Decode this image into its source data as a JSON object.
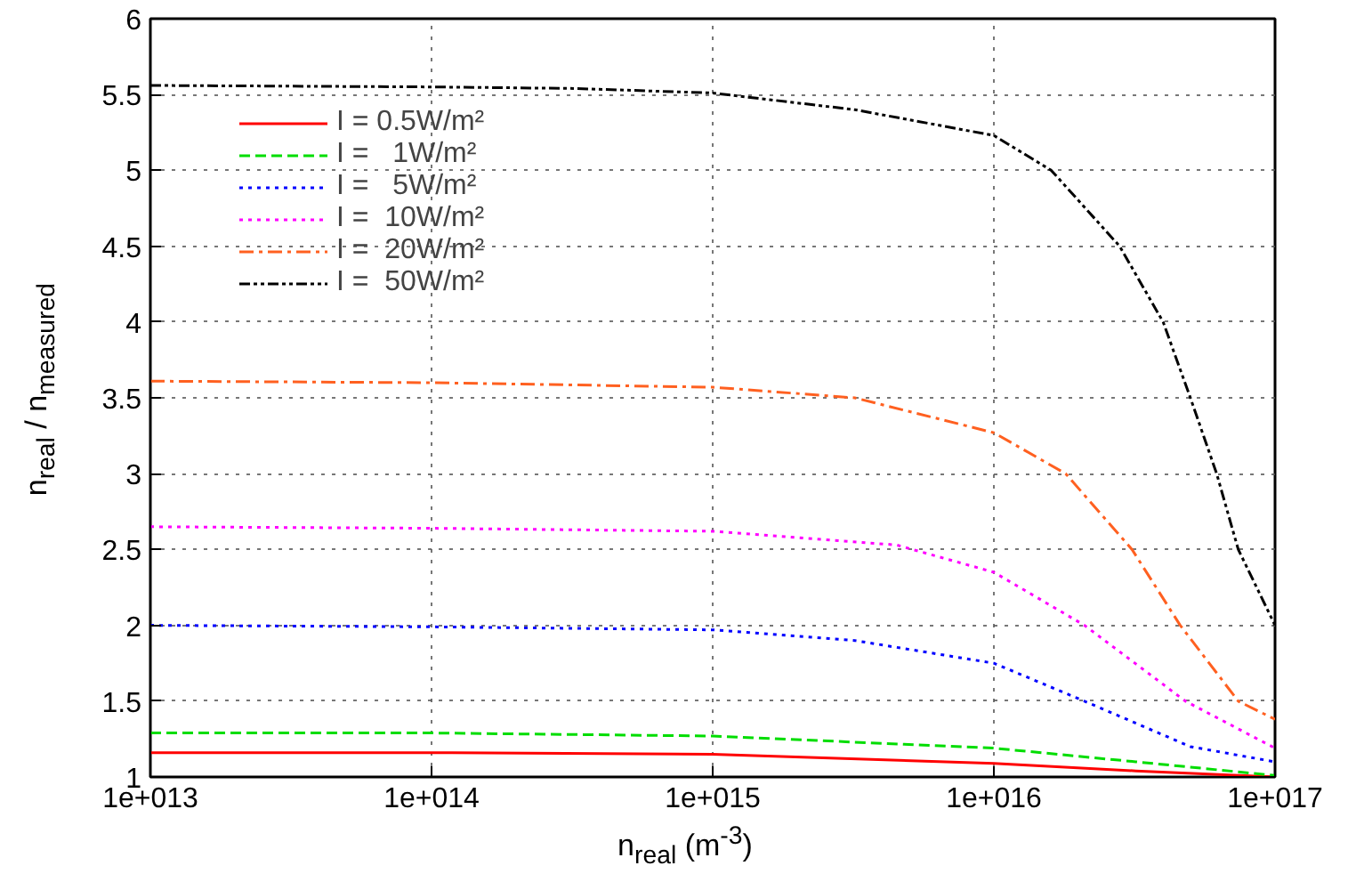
{
  "chart_data": {
    "type": "line",
    "xlabel": "n$_{real}$ (m$^{-3}$)",
    "ylabel": "n$_{real}$ / n$_{measured}$",
    "log": "x",
    "xlim": [
      10000000000000.0,
      1e+17
    ],
    "ylim": [
      1,
      6
    ],
    "xticks": [
      {
        "value": 10000000000000.0,
        "label": "1e+013"
      },
      {
        "value": 100000000000000.0,
        "label": "1e+014"
      },
      {
        "value": 1000000000000000.0,
        "label": "1e+015"
      },
      {
        "value": 1e+16,
        "label": "1e+016"
      },
      {
        "value": 1e+17,
        "label": "1e+017"
      }
    ],
    "yticks": [
      1,
      1.5,
      2,
      2.5,
      3,
      3.5,
      4,
      4.5,
      5,
      5.5,
      6
    ],
    "grid": true,
    "legend": "top left",
    "series": [
      {
        "name": "I = 0.5W/m²",
        "color": "#ff0000",
        "line_style": "solid",
        "x": [
          10000000000000.0,
          100000000000000.0,
          1000000000000000.0,
          1e+16,
          3.2e+16,
          1e+17
        ],
        "values": [
          1.16,
          1.16,
          1.15,
          1.09,
          1.04,
          1.0
        ]
      },
      {
        "name": "I =   1W/m²",
        "color": "#00dd00",
        "line_style": "dashed",
        "x": [
          10000000000000.0,
          100000000000000.0,
          1000000000000000.0,
          1e+16,
          3.2e+16,
          1e+17
        ],
        "values": [
          1.29,
          1.29,
          1.27,
          1.19,
          1.1,
          1.01
        ]
      },
      {
        "name": "I =   5W/m²",
        "color": "#0000ff",
        "line_style": "dotted",
        "x": [
          10000000000000.0,
          100000000000000.0,
          1000000000000000.0,
          3200000000000000.0,
          1e+16,
          2.1e+16,
          5e+16,
          1e+17
        ],
        "values": [
          2.0,
          1.99,
          1.97,
          1.9,
          1.75,
          1.5,
          1.2,
          1.1
        ]
      },
      {
        "name": "I =  10W/m²",
        "color": "#ff00ff",
        "line_style": "dotted",
        "x": [
          10000000000000.0,
          100000000000000.0,
          1000000000000000.0,
          4500000000000000.0,
          1e+16,
          2.1e+16,
          4.8e+16,
          1e+17
        ],
        "values": [
          2.65,
          2.64,
          2.62,
          2.53,
          2.35,
          2.0,
          1.5,
          1.19
        ]
      },
      {
        "name": "I =  20W/m²",
        "color": "#ff6020",
        "line_style": "dashdot",
        "x": [
          10000000000000.0,
          100000000000000.0,
          1000000000000000.0,
          3200000000000000.0,
          1e+16,
          1.8e+16,
          3.1e+16,
          4.6e+16,
          7.4e+16,
          1e+17
        ],
        "values": [
          3.61,
          3.6,
          3.57,
          3.5,
          3.27,
          3.0,
          2.5,
          2.0,
          1.5,
          1.38
        ]
      },
      {
        "name": "I =  50W/m²",
        "color": "#000000",
        "line_style": "dashdotdot",
        "x": [
          10000000000000.0,
          100000000000000.0,
          320000000000000.0,
          1000000000000000.0,
          3200000000000000.0,
          1e+16,
          1.6e+16,
          2.8e+16,
          4e+16,
          5e+16,
          6.2e+16,
          7.4e+16,
          1e+17
        ],
        "values": [
          5.56,
          5.55,
          5.54,
          5.51,
          5.4,
          5.23,
          5.0,
          4.5,
          4.0,
          3.5,
          3.0,
          2.5,
          2.0
        ]
      }
    ]
  }
}
